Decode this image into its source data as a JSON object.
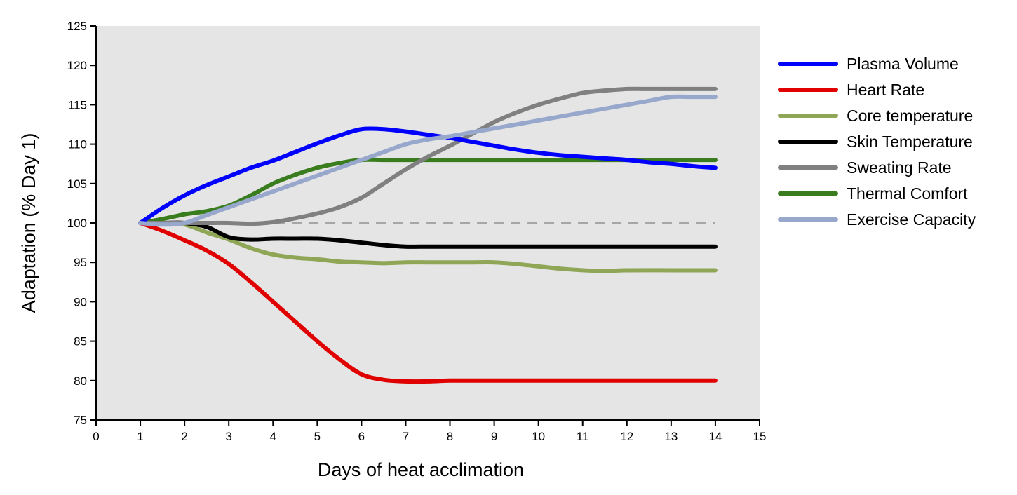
{
  "chart_data": {
    "type": "line",
    "title": "",
    "xlabel": "Days of heat acclimation",
    "ylabel": "Adaptation (% Day 1)",
    "xlim": [
      0,
      15
    ],
    "ylim": [
      75,
      125
    ],
    "xticks": [
      0,
      1,
      2,
      3,
      4,
      5,
      6,
      7,
      8,
      9,
      10,
      11,
      12,
      13,
      14,
      15
    ],
    "yticks": [
      75,
      80,
      85,
      90,
      95,
      100,
      105,
      110,
      115,
      120,
      125
    ],
    "grid": false,
    "background": "#e5e5e5",
    "legend_position": "right",
    "reference_line": {
      "y": 100,
      "color": "#a6a6a6",
      "style": "dashed"
    },
    "series": [
      {
        "name": "Plasma Volume",
        "color": "#0000ff",
        "x": [
          1,
          1.5,
          2,
          2.5,
          3,
          3.5,
          4,
          4.5,
          5,
          5.5,
          6,
          6.5,
          7,
          7.5,
          8,
          8.5,
          9,
          9.5,
          10,
          10.5,
          11,
          11.5,
          12,
          12.5,
          13,
          13.5,
          14
        ],
        "y": [
          100,
          101.9,
          103.5,
          104.8,
          105.9,
          107,
          107.9,
          109,
          110.1,
          111.1,
          111.9,
          111.9,
          111.6,
          111.2,
          110.8,
          110.3,
          109.8,
          109.3,
          108.9,
          108.6,
          108.4,
          108.2,
          108,
          107.7,
          107.5,
          107.2,
          107
        ]
      },
      {
        "name": "Heart Rate",
        "color": "#e00000",
        "x": [
          1,
          1.5,
          2,
          2.5,
          3,
          3.5,
          4,
          4.5,
          5,
          5.5,
          6,
          6.5,
          7,
          7.5,
          8,
          9,
          10,
          11,
          12,
          13,
          14
        ],
        "y": [
          100,
          99,
          97.8,
          96.5,
          94.8,
          92.5,
          90,
          87.5,
          85,
          82.7,
          80.8,
          80.1,
          79.9,
          79.9,
          80,
          80,
          80,
          80,
          80,
          80,
          80
        ]
      },
      {
        "name": "Core temperature",
        "color": "#8fa657",
        "x": [
          1,
          1.5,
          2,
          2.5,
          3,
          3.5,
          4,
          4.5,
          5,
          5.5,
          6,
          6.5,
          7,
          7.5,
          8,
          8.5,
          9,
          9.5,
          10,
          10.5,
          11,
          11.5,
          12,
          13,
          14
        ],
        "y": [
          100,
          100,
          99.8,
          98.8,
          97.9,
          96.8,
          96,
          95.6,
          95.4,
          95.1,
          95,
          94.9,
          95,
          95,
          95,
          95,
          95,
          94.8,
          94.5,
          94.2,
          94,
          93.9,
          94,
          94,
          94
        ]
      },
      {
        "name": "Skin Temperature",
        "color": "#000000",
        "x": [
          1,
          1.5,
          2,
          2.5,
          3,
          3.5,
          4,
          4.5,
          5,
          5.5,
          6,
          6.5,
          7,
          7.5,
          8,
          9,
          10,
          11,
          12,
          13,
          14
        ],
        "y": [
          100,
          100,
          100,
          99.5,
          98.2,
          97.9,
          98,
          98,
          98,
          97.8,
          97.5,
          97.2,
          97,
          97,
          97,
          97,
          97,
          97,
          97,
          97,
          97
        ]
      },
      {
        "name": "Sweating Rate",
        "color": "#808080",
        "x": [
          1,
          1.5,
          2,
          2.5,
          3,
          3.5,
          4,
          4.5,
          5,
          5.5,
          6,
          6.5,
          7,
          7.5,
          8,
          8.5,
          9,
          9.5,
          10,
          10.5,
          11,
          11.5,
          12,
          12.5,
          13,
          13.5,
          14
        ],
        "y": [
          100,
          100,
          100,
          100,
          100,
          99.9,
          100.1,
          100.6,
          101.2,
          102,
          103.2,
          105,
          106.8,
          108.4,
          109.8,
          111.3,
          112.8,
          114,
          115,
          115.8,
          116.5,
          116.8,
          117,
          117,
          117,
          117,
          117
        ]
      },
      {
        "name": "Thermal Comfort",
        "color": "#3a7d1e",
        "x": [
          1,
          1.5,
          2,
          2.5,
          3,
          3.5,
          4,
          4.5,
          5,
          5.5,
          6,
          6.5,
          7,
          8,
          9,
          10,
          11,
          12,
          13,
          14
        ],
        "y": [
          100,
          100.5,
          101.1,
          101.5,
          102.2,
          103.5,
          105,
          106.1,
          107,
          107.6,
          108,
          108,
          108,
          108,
          108,
          108,
          108,
          108,
          108,
          108
        ]
      },
      {
        "name": "Exercise Capacity",
        "color": "#97a8cc",
        "x": [
          1,
          1.5,
          2,
          2.5,
          3,
          3.5,
          4,
          4.5,
          5,
          5.5,
          6,
          6.5,
          7,
          7.5,
          8,
          8.5,
          9,
          9.5,
          10,
          10.5,
          11,
          11.5,
          12,
          12.5,
          13,
          13.5,
          14
        ],
        "y": [
          100,
          99.8,
          100,
          101,
          102,
          103,
          104,
          105,
          106,
          107,
          108,
          109,
          110,
          110.6,
          111,
          111.5,
          112,
          112.5,
          113,
          113.5,
          114,
          114.5,
          115,
          115.5,
          116,
          116,
          116
        ]
      }
    ]
  }
}
